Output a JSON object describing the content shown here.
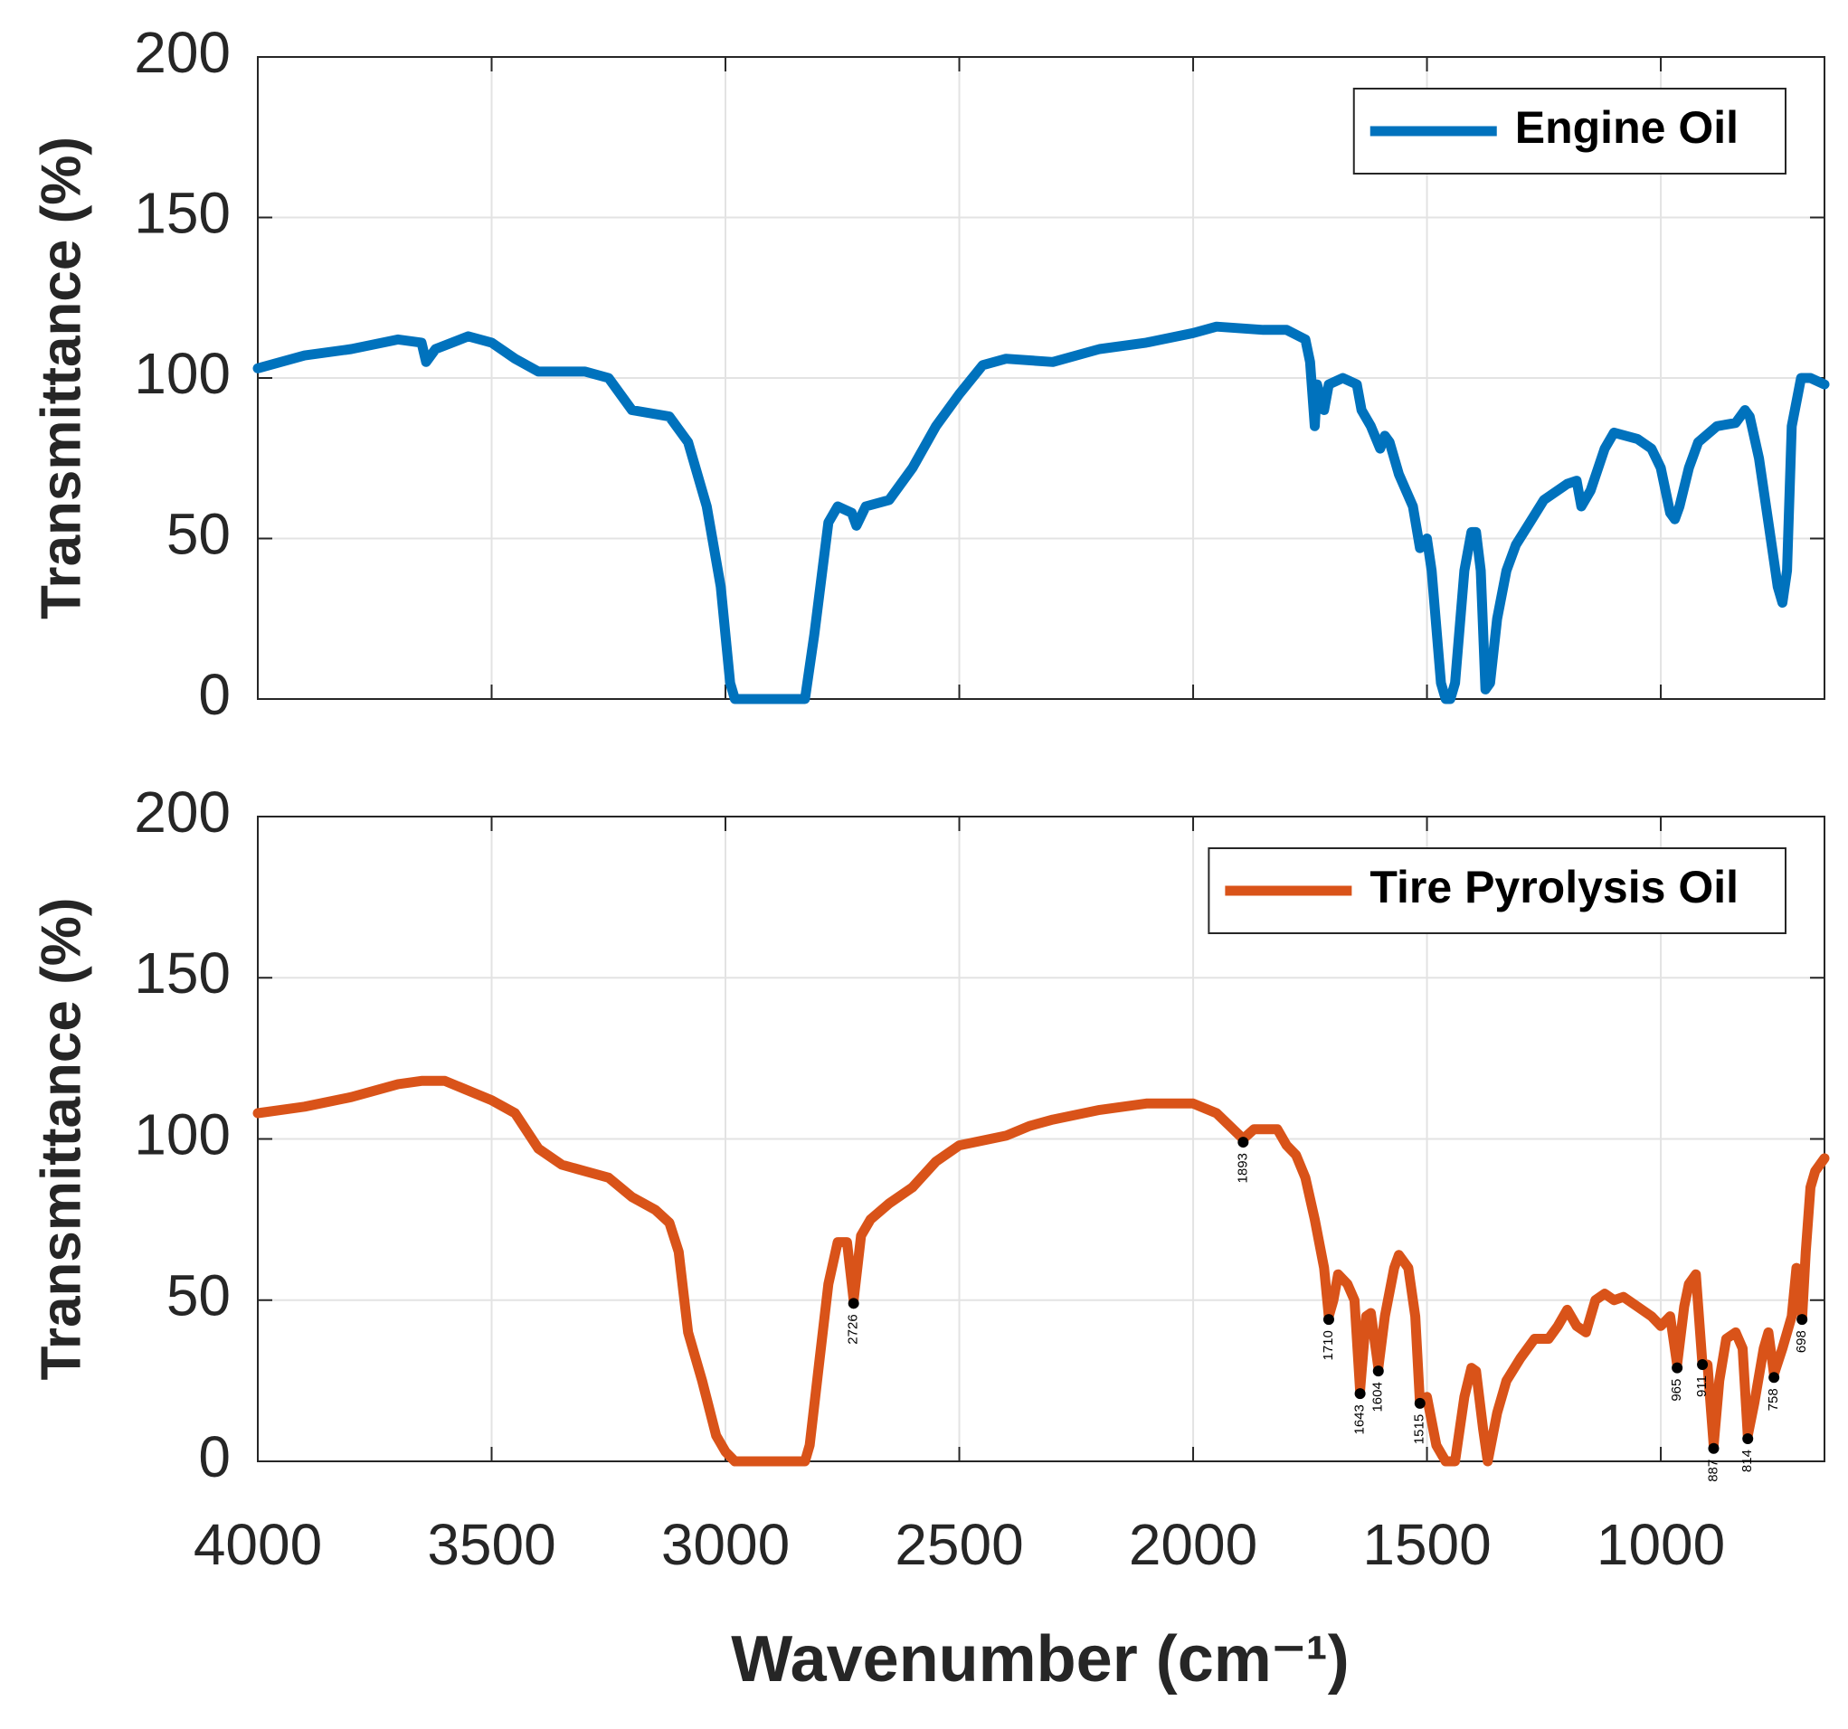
{
  "chart_data": [
    {
      "type": "line",
      "ylabel": "Transmittance (%)",
      "x": [
        4000,
        3900,
        3800,
        3700,
        3650,
        3640,
        3620,
        3550,
        3500,
        3450,
        3400,
        3300,
        3250,
        3200,
        3120,
        3080,
        3040,
        3010,
        2990,
        2980,
        2900,
        2850,
        2830,
        2810,
        2780,
        2760,
        2730,
        2720,
        2700,
        2650,
        2600,
        2550,
        2500,
        2450,
        2400,
        2300,
        2200,
        2100,
        2000,
        1950,
        1850,
        1800,
        1760,
        1750,
        1740,
        1735,
        1720,
        1710,
        1680,
        1650,
        1640,
        1620,
        1600,
        1590,
        1580,
        1560,
        1530,
        1515,
        1500,
        1490,
        1470,
        1460,
        1450,
        1440,
        1420,
        1405,
        1395,
        1385,
        1375,
        1365,
        1350,
        1330,
        1310,
        1280,
        1250,
        1200,
        1180,
        1170,
        1150,
        1120,
        1100,
        1050,
        1020,
        1000,
        980,
        970,
        960,
        940,
        920,
        880,
        840,
        820,
        810,
        790,
        770,
        750,
        740,
        730,
        720,
        700,
        680,
        650
      ],
      "series": [
        {
          "name": "Engine Oil",
          "color": "#0072bd",
          "values": [
            103,
            107,
            109,
            112,
            111,
            105,
            109,
            113,
            111,
            106,
            102,
            102,
            100,
            90,
            88,
            80,
            60,
            35,
            5,
            0,
            0,
            0,
            0,
            20,
            55,
            60,
            58,
            54,
            60,
            62,
            72,
            85,
            95,
            104,
            106,
            105,
            109,
            111,
            114,
            116,
            115,
            115,
            112,
            105,
            85,
            98,
            90,
            98,
            100,
            98,
            90,
            85,
            78,
            82,
            80,
            70,
            60,
            47,
            50,
            40,
            5,
            0,
            0,
            5,
            40,
            52,
            52,
            40,
            3,
            5,
            25,
            40,
            48,
            55,
            62,
            67,
            68,
            60,
            65,
            78,
            83,
            81,
            78,
            72,
            58,
            56,
            60,
            72,
            80,
            85,
            86,
            90,
            88,
            75,
            55,
            35,
            30,
            40,
            85,
            100,
            100,
            98
          ]
        }
      ],
      "xlim": [
        4000,
        650
      ],
      "xticks": [
        4000,
        3500,
        3000,
        2500,
        2000,
        1500,
        1000
      ],
      "ylim": [
        0,
        200
      ],
      "yticks": [
        0,
        50,
        100,
        150,
        200
      ],
      "grid": true,
      "legend": "northeast"
    },
    {
      "type": "line",
      "ylabel": "Transmittance (%)",
      "xlabel": "Wavenumber (cm⁻¹)",
      "x": [
        4000,
        3900,
        3800,
        3700,
        3650,
        3600,
        3500,
        3450,
        3400,
        3350,
        3300,
        3250,
        3200,
        3150,
        3120,
        3100,
        3080,
        3050,
        3020,
        3000,
        2980,
        2900,
        2830,
        2820,
        2800,
        2780,
        2760,
        2740,
        2726,
        2710,
        2690,
        2650,
        2600,
        2550,
        2500,
        2400,
        2350,
        2300,
        2200,
        2100,
        2000,
        1950,
        1893,
        1870,
        1820,
        1800,
        1780,
        1760,
        1740,
        1720,
        1710,
        1700,
        1690,
        1670,
        1655,
        1643,
        1630,
        1620,
        1604,
        1590,
        1570,
        1560,
        1540,
        1525,
        1515,
        1500,
        1480,
        1460,
        1440,
        1420,
        1405,
        1395,
        1380,
        1370,
        1350,
        1330,
        1300,
        1270,
        1240,
        1220,
        1200,
        1180,
        1160,
        1140,
        1120,
        1100,
        1080,
        1050,
        1020,
        1000,
        980,
        965,
        950,
        940,
        925,
        911,
        900,
        887,
        875,
        860,
        840,
        825,
        814,
        800,
        780,
        770,
        758,
        740,
        720,
        710,
        700,
        698,
        690,
        680,
        670,
        650
      ],
      "series": [
        {
          "name": "Tire Pyrolysis Oil",
          "color": "#d95319",
          "values": [
            108,
            110,
            113,
            117,
            118,
            118,
            112,
            108,
            97,
            92,
            90,
            88,
            82,
            78,
            74,
            65,
            40,
            25,
            8,
            3,
            0,
            0,
            0,
            5,
            30,
            55,
            68,
            68,
            50,
            70,
            75,
            80,
            85,
            93,
            98,
            101,
            104,
            106,
            109,
            111,
            111,
            108,
            100,
            103,
            103,
            98,
            95,
            88,
            75,
            60,
            45,
            50,
            58,
            55,
            50,
            22,
            45,
            46,
            29,
            45,
            60,
            64,
            60,
            45,
            18,
            20,
            5,
            0,
            0,
            20,
            29,
            28,
            10,
            0,
            15,
            25,
            32,
            38,
            38,
            42,
            47,
            42,
            40,
            50,
            52,
            50,
            51,
            48,
            45,
            42,
            45,
            30,
            48,
            55,
            58,
            30,
            30,
            5,
            25,
            38,
            40,
            35,
            8,
            18,
            35,
            40,
            27,
            35,
            45,
            60,
            55,
            44,
            65,
            85,
            90,
            94
          ]
        }
      ],
      "annotations": [
        {
          "x": 2726,
          "y": 49
        },
        {
          "x": 1893,
          "y": 99
        },
        {
          "x": 1710,
          "y": 44
        },
        {
          "x": 1643,
          "y": 21
        },
        {
          "x": 1604,
          "y": 28
        },
        {
          "x": 1515,
          "y": 18
        },
        {
          "x": 965,
          "y": 29
        },
        {
          "x": 911,
          "y": 30
        },
        {
          "x": 887,
          "y": 4
        },
        {
          "x": 814,
          "y": 7
        },
        {
          "x": 758,
          "y": 26
        },
        {
          "x": 698,
          "y": 44
        }
      ],
      "xlim": [
        4000,
        650
      ],
      "xticks": [
        4000,
        3500,
        3000,
        2500,
        2000,
        1500,
        1000
      ],
      "ylim": [
        0,
        200
      ],
      "yticks": [
        0,
        50,
        100,
        150,
        200
      ],
      "grid": true,
      "legend": "northeast"
    }
  ]
}
